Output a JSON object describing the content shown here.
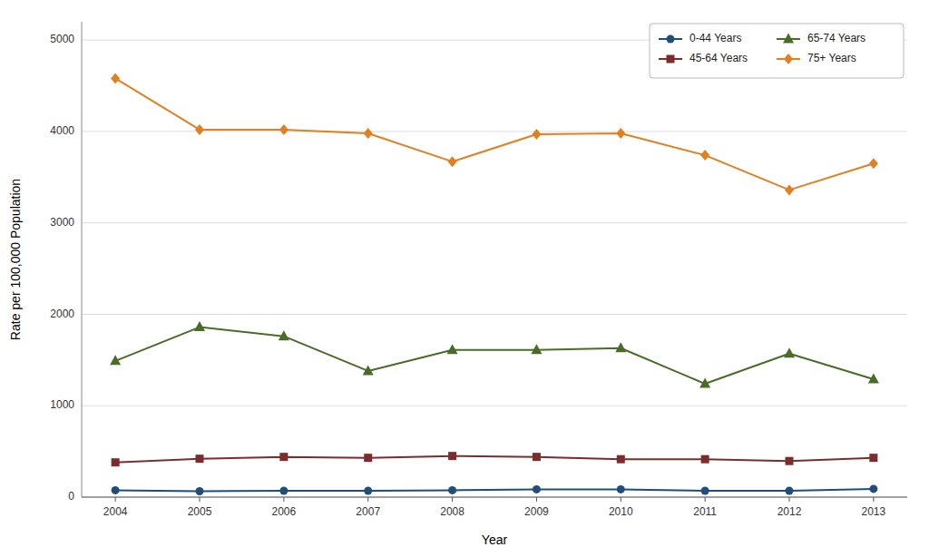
{
  "chart_data": {
    "type": "line",
    "x": [
      2004,
      2005,
      2006,
      2007,
      2008,
      2009,
      2010,
      2011,
      2012,
      2013
    ],
    "series": [
      {
        "name": "0-44 Years",
        "color": "#1F4E79",
        "marker": "circle",
        "values": [
          75,
          65,
          70,
          70,
          75,
          85,
          85,
          70,
          70,
          90
        ]
      },
      {
        "name": "45-64 Years",
        "color": "#7B2D2D",
        "marker": "square",
        "values": [
          380,
          420,
          440,
          430,
          450,
          440,
          415,
          415,
          395,
          430
        ]
      },
      {
        "name": "65-74 Years",
        "color": "#4B6B2A",
        "marker": "triangle",
        "values": [
          1490,
          1860,
          1760,
          1380,
          1610,
          1610,
          1630,
          1240,
          1570,
          1290
        ]
      },
      {
        "name": "75+ Years",
        "color": "#E08020",
        "marker": "diamond",
        "values": [
          4580,
          4020,
          4020,
          3980,
          3670,
          3970,
          3980,
          3740,
          3360,
          3650
        ]
      }
    ],
    "x_label": "Year",
    "y_label": "Rate per 100,000 Population",
    "xlim": [
      2003.6,
      2013.4
    ],
    "xticks": [
      2004,
      2005,
      2006,
      2007,
      2008,
      2009,
      2010,
      2011,
      2012,
      2013
    ],
    "ylim": [
      0,
      5200
    ],
    "yticks": [
      0,
      1000,
      2000,
      3000,
      4000,
      5000
    ],
    "grid": true,
    "legend": "upper right"
  }
}
